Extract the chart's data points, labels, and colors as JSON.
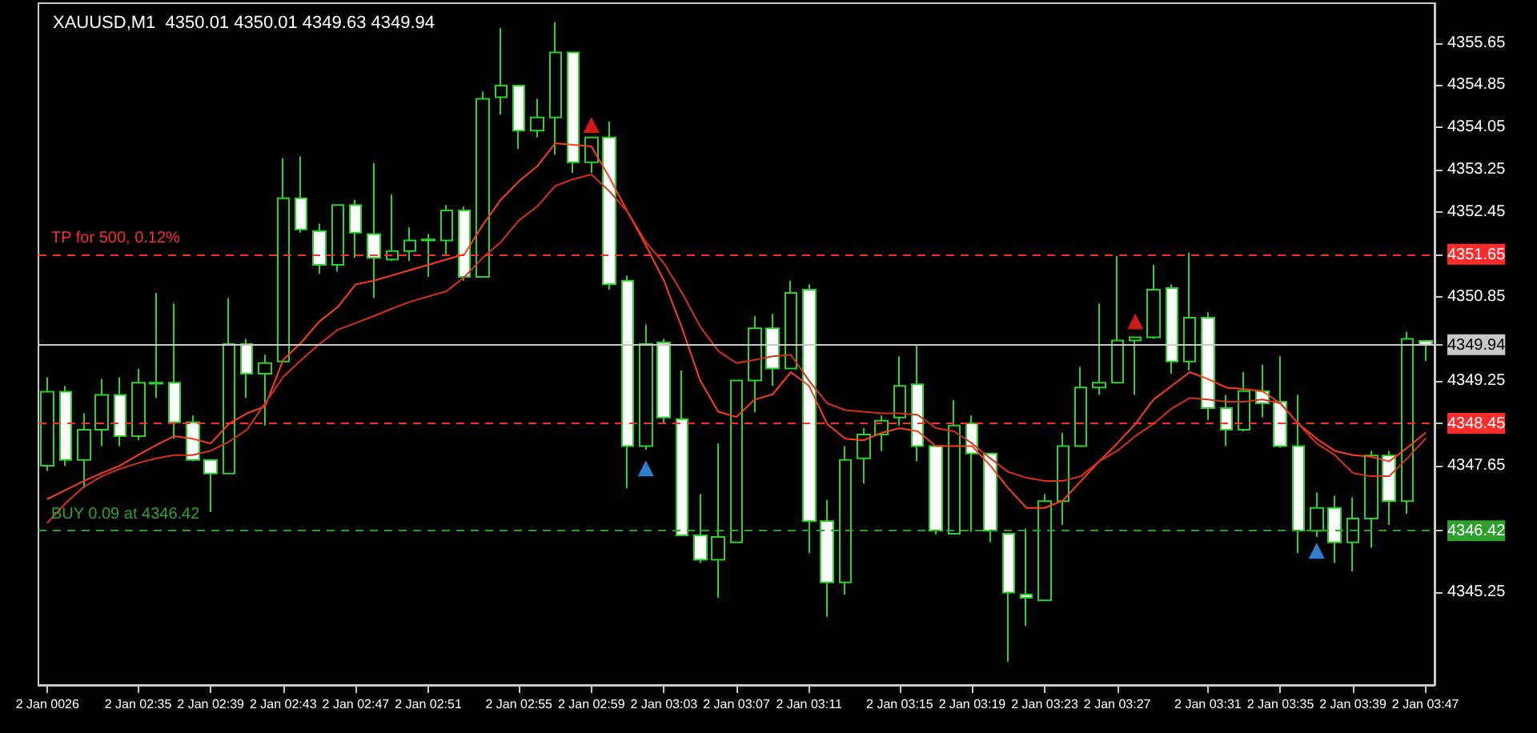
{
  "chart_data": {
    "type": "candlestick",
    "title": "XAUUSD,M1  4350.01 4350.01 4349.63 4349.94",
    "categories": [
      "2 Jan 0026",
      null,
      null,
      null,
      null,
      "2 Jan 02:35",
      null,
      null,
      null,
      "2 Jan 02:39",
      null,
      null,
      null,
      "2 Jan 02:43",
      null,
      null,
      null,
      "2 Jan 02:47",
      null,
      null,
      null,
      "2 Jan 02:51",
      null,
      null,
      null,
      null,
      "2 Jan 02:55",
      null,
      null,
      null,
      "2 Jan 02:59",
      null,
      null,
      null,
      "2 Jan 03:03",
      null,
      null,
      null,
      "2 Jan 03:07",
      null,
      null,
      null,
      "2 Jan 03:11",
      null,
      null,
      null,
      null,
      "2 Jan 03:15",
      null,
      null,
      null,
      "2 Jan 03:19",
      null,
      null,
      null,
      "2 Jan 03:23",
      null,
      null,
      null,
      "2 Jan 03:27",
      null,
      null,
      null,
      null,
      "2 Jan 03:31",
      null,
      null,
      null,
      "2 Jan 03:35",
      null,
      null,
      null,
      "2 Jan 03:39",
      null,
      null,
      null,
      "2 Jan 03:47"
    ],
    "series": [
      {
        "type": "line",
        "color": "#ff3b1f",
        "values": [
          4347.02,
          4347.19,
          4347.36,
          4347.51,
          4347.65,
          4347.85,
          4348.04,
          4348.21,
          4348.16,
          4348.07,
          4348.44,
          4348.64,
          4348.77,
          4349.65,
          4349.98,
          4350.38,
          4350.65,
          4351.08,
          4351.15,
          4351.25,
          4351.35,
          4351.45,
          4351.55,
          4351.65,
          4352.2,
          4352.68,
          4353.03,
          4353.31,
          4353.75,
          4353.72,
          4353.69,
          4353.1,
          4352.45,
          4351.82,
          4351.15,
          4350.25,
          4349.26,
          4348.67,
          4348.57,
          4348.9,
          4349.0,
          4349.42,
          4349.16,
          4348.44,
          4348.16,
          4348.13,
          4348.27,
          4348.36,
          4348.3,
          4348.02,
          4348.02,
          4348.02,
          4347.65,
          4347.22,
          4346.85,
          4346.85,
          4346.99,
          4347.36,
          4347.73,
          4348.07,
          4348.44,
          4348.9,
          4349.16,
          4349.42,
          4349.29,
          4349.13,
          4349.1,
          4349.06,
          4348.83,
          4348.44,
          4348.16,
          4347.93,
          4347.85,
          4347.82,
          4347.73,
          4347.99,
          4348.27
        ]
      },
      {
        "type": "line",
        "color": "#d9301a",
        "values": [
          4346.57,
          4346.94,
          4347.25,
          4347.45,
          4347.59,
          4347.7,
          4347.79,
          4347.85,
          4347.85,
          4347.93,
          4348.1,
          4348.33,
          4348.83,
          4349.33,
          4349.65,
          4349.95,
          4350.22,
          4350.35,
          4350.48,
          4350.62,
          4350.75,
          4350.85,
          4350.95,
          4351.22,
          4351.58,
          4351.88,
          4352.29,
          4352.55,
          4352.94,
          4353.07,
          4353.16,
          4352.84,
          4352.45,
          4351.88,
          4351.48,
          4350.92,
          4350.28,
          4349.82,
          4349.59,
          4349.65,
          4349.72,
          4349.75,
          4349.26,
          4348.83,
          4348.7,
          4348.67,
          4348.64,
          4348.64,
          4348.61,
          4348.36,
          4348.3,
          4348.07,
          4347.79,
          4347.53,
          4347.42,
          4347.36,
          4347.36,
          4347.45,
          4347.73,
          4347.93,
          4348.21,
          4348.44,
          4348.73,
          4348.93,
          4348.9,
          4348.86,
          4348.86,
          4348.9,
          4348.83,
          4348.44,
          4348.07,
          4347.85,
          4347.51,
          4347.45,
          4347.45,
          4347.79,
          4348.16
        ]
      },
      {
        "color": "#2bd12b",
        "colors": [
          "#000000",
          "#ffffff",
          "#000000",
          "#000000",
          "#ffffff",
          "#000000",
          "#ffffff",
          "#ffffff",
          "#ffffff",
          "#ffffff",
          "#000000",
          "#ffffff",
          "#000000",
          "#000000",
          "#ffffff",
          "#ffffff",
          "#000000",
          "#ffffff",
          "#ffffff",
          "#000000",
          "#000000",
          "#000000",
          "#000000",
          "#ffffff",
          "#000000",
          "#000000",
          "#ffffff",
          "#000000",
          "#000000",
          "#ffffff",
          "#000000",
          "#ffffff",
          "#ffffff",
          "#000000",
          "#ffffff",
          "#ffffff",
          "#ffffff",
          "#000000",
          "#000000",
          "#000000",
          "#ffffff",
          "#000000",
          "#ffffff",
          "#ffffff",
          "#000000",
          "#000000",
          "#000000",
          "#000000",
          "#ffffff",
          "#ffffff",
          "#000000",
          "#ffffff",
          "#ffffff",
          "#ffffff",
          "#ffffff",
          "#000000",
          "#000000",
          "#000000",
          "#000000",
          "#000000",
          "#000000",
          "#000000",
          "#ffffff",
          "#000000",
          "#ffffff",
          "#ffffff",
          "#000000",
          "#ffffff",
          "#ffffff",
          "#ffffff",
          "#000000",
          "#ffffff",
          "#000000",
          "#000000",
          "#ffffff",
          "#000000",
          "#ffffff"
        ],
        "ohlc": [
          [
            4347.65,
            4349.32,
            4347.55,
            4349.05
          ],
          [
            4349.05,
            4349.16,
            4347.65,
            4347.76
          ],
          [
            4347.76,
            4348.64,
            4347.22,
            4348.33
          ],
          [
            4348.33,
            4349.29,
            4348.02,
            4348.99
          ],
          [
            4348.99,
            4349.32,
            4348.02,
            4348.21
          ],
          [
            4348.21,
            4349.48,
            4348.13,
            4349.22
          ],
          [
            4349.22,
            4350.92,
            4348.93,
            4349.2
          ],
          [
            4349.22,
            4350.72,
            4348.16,
            4348.47
          ],
          [
            4348.47,
            4348.6,
            4347.73,
            4347.76
          ],
          [
            4347.76,
            4347.76,
            4346.77,
            4347.5
          ],
          [
            4347.5,
            4350.82,
            4347.5,
            4349.95
          ],
          [
            4349.95,
            4350.05,
            4348.93,
            4349.39
          ],
          [
            4349.39,
            4349.75,
            4348.41,
            4349.59
          ],
          [
            4349.62,
            4353.47,
            4349.62,
            4352.71
          ],
          [
            4352.71,
            4353.5,
            4352.06,
            4352.12
          ],
          [
            4352.09,
            4352.23,
            4351.28,
            4351.45
          ],
          [
            4351.45,
            4352.58,
            4351.32,
            4352.58
          ],
          [
            4352.58,
            4352.68,
            4351.58,
            4352.06
          ],
          [
            4352.03,
            4353.37,
            4350.82,
            4351.58
          ],
          [
            4351.55,
            4352.78,
            4351.52,
            4351.71
          ],
          [
            4351.71,
            4352.16,
            4351.52,
            4351.91
          ],
          [
            4351.91,
            4352.03,
            4351.22,
            4351.93
          ],
          [
            4351.91,
            4352.58,
            4351.65,
            4352.48
          ],
          [
            4352.48,
            4352.55,
            4351.15,
            4351.22
          ],
          [
            4351.22,
            4354.73,
            4351.22,
            4354.59
          ],
          [
            4354.62,
            4355.93,
            4354.29,
            4354.84
          ],
          [
            4354.84,
            4354.84,
            4353.64,
            4353.99
          ],
          [
            4353.99,
            4354.59,
            4353.86,
            4354.24
          ],
          [
            4354.24,
            4356.04,
            4353.53,
            4355.47
          ],
          [
            4355.47,
            4355.47,
            4353.19,
            4353.39
          ],
          [
            4353.39,
            4353.86,
            4353.19,
            4353.86
          ],
          [
            4353.86,
            4354.16,
            4350.98,
            4351.08
          ],
          [
            4351.15,
            4351.25,
            4347.22,
            4348.02
          ],
          [
            4348.02,
            4350.32,
            4347.95,
            4349.95
          ],
          [
            4349.98,
            4350.05,
            4348.45,
            4348.56
          ],
          [
            4348.53,
            4349.45,
            4346.33,
            4346.33
          ],
          [
            4346.33,
            4347.11,
            4345.81,
            4345.87
          ],
          [
            4345.87,
            4348.07,
            4345.15,
            4346.3
          ],
          [
            4346.2,
            4349.26,
            4346.2,
            4349.26
          ],
          [
            4349.26,
            4350.48,
            4348.66,
            4350.25
          ],
          [
            4350.25,
            4350.52,
            4349.16,
            4349.49
          ],
          [
            4349.49,
            4351.15,
            4349.49,
            4350.92
          ],
          [
            4350.98,
            4351.08,
            4346.0,
            4346.6
          ],
          [
            4346.6,
            4347.0,
            4344.79,
            4345.44
          ],
          [
            4345.44,
            4348.02,
            4345.21,
            4347.76
          ],
          [
            4347.79,
            4348.36,
            4347.31,
            4348.24
          ],
          [
            4348.24,
            4348.6,
            4347.93,
            4348.5
          ],
          [
            4348.56,
            4349.72,
            4348.41,
            4349.16
          ],
          [
            4349.19,
            4349.92,
            4347.73,
            4348.02
          ],
          [
            4348.02,
            4348.02,
            4346.35,
            4346.42
          ],
          [
            4346.36,
            4348.89,
            4346.36,
            4348.41
          ],
          [
            4348.45,
            4348.6,
            4346.4,
            4347.88
          ],
          [
            4347.88,
            4347.88,
            4346.2,
            4346.42
          ],
          [
            4346.36,
            4346.36,
            4343.94,
            4345.25
          ],
          [
            4345.21,
            4346.46,
            4344.62,
            4345.15
          ],
          [
            4345.1,
            4347.11,
            4345.1,
            4346.98
          ],
          [
            4346.98,
            4348.27,
            4346.53,
            4348.02
          ],
          [
            4348.02,
            4349.52,
            4348.02,
            4349.13
          ],
          [
            4349.13,
            4350.72,
            4348.99,
            4349.22
          ],
          [
            4349.22,
            4351.62,
            4349.22,
            4350.02
          ],
          [
            4350.02,
            4350.08,
            4348.99,
            4350.08
          ],
          [
            4350.08,
            4351.45,
            4350.05,
            4350.98
          ],
          [
            4351.01,
            4351.08,
            4349.39,
            4349.62
          ],
          [
            4349.62,
            4351.68,
            4349.45,
            4350.45
          ],
          [
            4350.45,
            4350.55,
            4348.51,
            4348.74
          ],
          [
            4348.74,
            4348.99,
            4348.02,
            4348.33
          ],
          [
            4348.33,
            4349.42,
            4348.3,
            4349.06
          ],
          [
            4349.06,
            4349.56,
            4348.56,
            4348.83
          ],
          [
            4348.86,
            4349.72,
            4347.99,
            4348.02
          ],
          [
            4348.02,
            4348.99,
            4346.0,
            4346.42
          ],
          [
            4346.42,
            4347.14,
            4346.3,
            4346.85
          ],
          [
            4346.85,
            4347.08,
            4345.81,
            4346.2
          ],
          [
            4346.2,
            4347.05,
            4345.65,
            4346.65
          ],
          [
            4346.65,
            4347.93,
            4346.1,
            4347.84
          ],
          [
            4347.84,
            4347.93,
            4346.53,
            4346.98
          ],
          [
            4346.98,
            4350.18,
            4346.74,
            4350.05
          ],
          [
            4350.01,
            4350.01,
            4349.63,
            4349.94
          ]
        ]
      },
      {
        "type": "scatter",
        "color": "#ff2020",
        "marker": "triangle",
        "values": [
          null,
          null,
          null,
          null,
          null,
          null,
          null,
          null,
          null,
          null,
          null,
          null,
          null,
          null,
          null,
          null,
          null,
          null,
          null,
          null,
          null,
          null,
          null,
          null,
          null,
          null,
          null,
          null,
          null,
          null,
          4354.1,
          null,
          null,
          null,
          null,
          null,
          null,
          null,
          null,
          null,
          null,
          null,
          null,
          null,
          null,
          null,
          null,
          null,
          null,
          null,
          null,
          null,
          null,
          null,
          null,
          null,
          null,
          null,
          null,
          null,
          4350.38,
          null,
          null,
          null,
          null,
          null,
          null,
          null,
          null,
          null,
          null,
          null,
          null,
          null,
          null,
          null,
          null
        ]
      },
      {
        "type": "scatter",
        "color": "#3aa0ff",
        "marker": "triangle",
        "values": [
          null,
          null,
          null,
          null,
          null,
          null,
          null,
          null,
          null,
          null,
          null,
          null,
          null,
          null,
          null,
          null,
          null,
          null,
          null,
          null,
          null,
          null,
          null,
          null,
          null,
          null,
          null,
          null,
          null,
          null,
          null,
          null,
          null,
          4347.6,
          null,
          null,
          null,
          null,
          null,
          null,
          null,
          null,
          null,
          null,
          null,
          null,
          null,
          null,
          null,
          null,
          null,
          null,
          null,
          null,
          null,
          null,
          null,
          null,
          null,
          null,
          null,
          null,
          null,
          null,
          null,
          null,
          null,
          null,
          null,
          null,
          4346.04,
          null,
          null,
          null,
          null,
          null,
          null
        ]
      }
    ],
    "ylim": [
      4343.5,
      4356.4
    ],
    "yticks": [
      4345.25,
      4346.42,
      4347.65,
      4348.45,
      4349.25,
      4349.94,
      4350.85,
      4351.65,
      4352.45,
      4353.25,
      4354.05,
      4354.85,
      4355.65
    ],
    "ref_lines": [
      {
        "axis": "y",
        "value": 4351.65,
        "label": "TP for 500, 0.12%",
        "color": "#ff2a2a",
        "line_style": "dashed"
      },
      {
        "axis": "y",
        "value": 4349.94,
        "color": "#c8c8c8",
        "line_style": "solid"
      },
      {
        "axis": "y",
        "value": 4348.45,
        "color": "#ff2a2a",
        "line_style": "dashed"
      },
      {
        "axis": "y",
        "value": 4346.42,
        "label": "BUY 0.09 at 4346.42",
        "color": "#2ea02e",
        "line_style": "dashed"
      }
    ],
    "grid": false
  }
}
